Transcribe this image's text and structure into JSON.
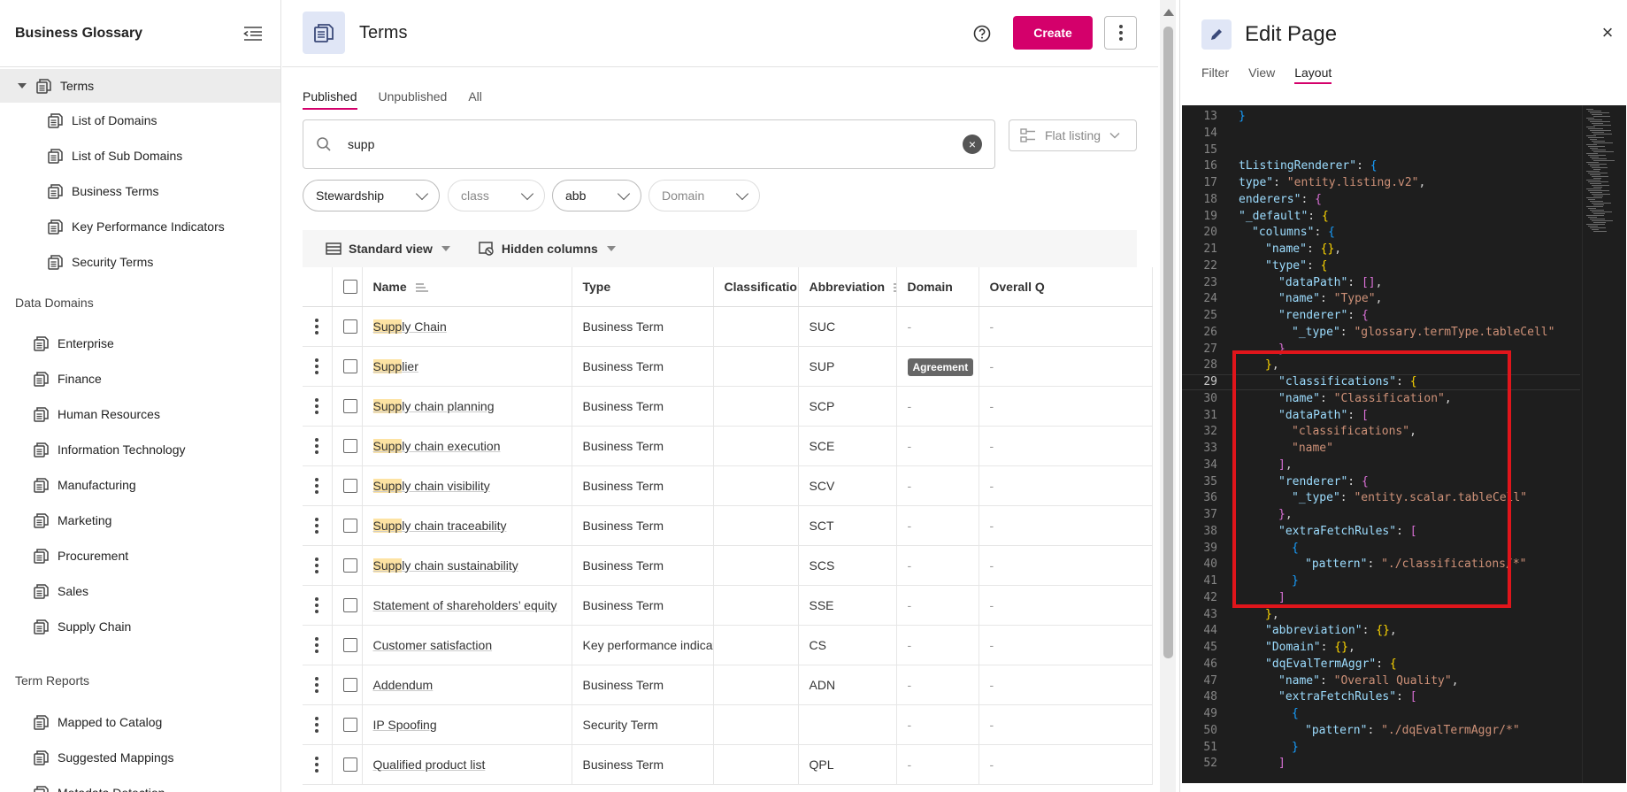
{
  "sidebar": {
    "title": "Business Glossary",
    "items": [
      {
        "label": "Terms",
        "level": 0,
        "active": true
      },
      {
        "label": "List of Domains",
        "level": 1
      },
      {
        "label": "List of Sub Domains",
        "level": 1
      },
      {
        "label": "Business Terms",
        "level": 1
      },
      {
        "label": "Key Performance Indicators",
        "level": 1
      },
      {
        "label": "Security Terms",
        "level": 1
      }
    ],
    "data_domains_header": "Data Domains",
    "data_domains": [
      "Enterprise",
      "Finance",
      "Human Resources",
      "Information Technology",
      "Manufacturing",
      "Marketing",
      "Procurement",
      "Sales",
      "Supply Chain"
    ],
    "term_reports_header": "Term Reports",
    "term_reports": [
      "Mapped to Catalog",
      "Suggested Mappings",
      "Metadata Detection"
    ]
  },
  "header": {
    "title": "Terms",
    "create_label": "Create"
  },
  "tabs": [
    "Published",
    "Unpublished",
    "All"
  ],
  "search": {
    "value": "supp"
  },
  "listing_mode": "Flat listing",
  "filters": [
    {
      "label": "Stewardship",
      "muted": false
    },
    {
      "label": "class",
      "muted": true
    },
    {
      "label": "abb",
      "muted": false
    },
    {
      "label": "Domain",
      "muted": true
    }
  ],
  "view_bar": {
    "standard_view": "Standard view",
    "hidden_columns": "Hidden columns"
  },
  "table": {
    "columns": [
      "Name",
      "Type",
      "Classification",
      "Abbreviation",
      "Domain",
      "Overall Q"
    ],
    "rows": [
      {
        "highlight": "Supp",
        "rest": "ly Chain",
        "type": "Business Term",
        "classification": "",
        "abbreviation": "SUC",
        "domain": "-",
        "quality": "-"
      },
      {
        "highlight": "Supp",
        "rest": "lier",
        "type": "Business Term",
        "classification": "",
        "abbreviation": "SUP",
        "domain": "Agreement",
        "quality": "-"
      },
      {
        "highlight": "Supp",
        "rest": "ly chain planning",
        "type": "Business Term",
        "classification": "",
        "abbreviation": "SCP",
        "domain": "-",
        "quality": "-"
      },
      {
        "highlight": "Supp",
        "rest": "ly chain execution",
        "type": "Business Term",
        "classification": "",
        "abbreviation": "SCE",
        "domain": "-",
        "quality": "-"
      },
      {
        "highlight": "Supp",
        "rest": "ly chain visibility",
        "type": "Business Term",
        "classification": "",
        "abbreviation": "SCV",
        "domain": "-",
        "quality": "-"
      },
      {
        "highlight": "Supp",
        "rest": "ly chain traceability",
        "type": "Business Term",
        "classification": "",
        "abbreviation": "SCT",
        "domain": "-",
        "quality": "-"
      },
      {
        "highlight": "Supp",
        "rest": "ly chain sustainability",
        "type": "Business Term",
        "classification": "",
        "abbreviation": "SCS",
        "domain": "-",
        "quality": "-"
      },
      {
        "highlight": "",
        "rest": "Statement of shareholders’ equity",
        "type": "Business Term",
        "classification": "",
        "abbreviation": "SSE",
        "domain": "-",
        "quality": "-"
      },
      {
        "highlight": "",
        "rest": "Customer satisfaction",
        "type": "Key performance indicator",
        "classification": "",
        "abbreviation": "CS",
        "domain": "-",
        "quality": "-"
      },
      {
        "highlight": "",
        "rest": "Addendum",
        "type": "Business Term",
        "classification": "",
        "abbreviation": "ADN",
        "domain": "-",
        "quality": "-"
      },
      {
        "highlight": "",
        "rest": "IP Spoofing",
        "type": "Security Term",
        "classification": "",
        "abbreviation": "",
        "domain": "-",
        "quality": "-"
      },
      {
        "highlight": "",
        "rest": "Qualified product list",
        "type": "Business Term",
        "classification": "",
        "abbreviation": "QPL",
        "domain": "-",
        "quality": "-"
      }
    ]
  },
  "panel": {
    "title": "Edit Page",
    "tabs": [
      "Filter",
      "View",
      "Layout"
    ],
    "active_tab": "Layout",
    "current_line": 29,
    "code_lines": [
      {
        "n": 13,
        "indent": 0,
        "t": [
          [
            "p3",
            "}"
          ]
        ]
      },
      {
        "n": 14,
        "indent": 0,
        "t": []
      },
      {
        "n": 15,
        "indent": 0,
        "t": []
      },
      {
        "n": 16,
        "indent": 0,
        "t": [
          [
            "k",
            "tListingRenderer\""
          ],
          [
            "d",
            ": "
          ],
          [
            "p3",
            "{"
          ]
        ]
      },
      {
        "n": 17,
        "indent": 0,
        "t": [
          [
            "k",
            "type\""
          ],
          [
            "d",
            ": "
          ],
          [
            "s",
            "\"entity.listing.v2\""
          ],
          [
            "d",
            ","
          ]
        ]
      },
      {
        "n": 18,
        "indent": 0,
        "t": [
          [
            "k",
            "enderers\""
          ],
          [
            "d",
            ": "
          ],
          [
            "p2",
            "{"
          ]
        ]
      },
      {
        "n": 19,
        "indent": 0,
        "t": [
          [
            "k",
            "\"_default\""
          ],
          [
            "d",
            ": "
          ],
          [
            "p1",
            "{"
          ]
        ]
      },
      {
        "n": 20,
        "indent": 1,
        "t": [
          [
            "k",
            "\"columns\""
          ],
          [
            "d",
            ": "
          ],
          [
            "p3",
            "{"
          ]
        ]
      },
      {
        "n": 21,
        "indent": 2,
        "t": [
          [
            "k",
            "\"name\""
          ],
          [
            "d",
            ": "
          ],
          [
            "p1",
            "{}"
          ],
          [
            "d",
            ","
          ]
        ]
      },
      {
        "n": 22,
        "indent": 2,
        "t": [
          [
            "k",
            "\"type\""
          ],
          [
            "d",
            ": "
          ],
          [
            "p1",
            "{"
          ]
        ]
      },
      {
        "n": 23,
        "indent": 3,
        "t": [
          [
            "k",
            "\"dataPath\""
          ],
          [
            "d",
            ": "
          ],
          [
            "p2",
            "[]"
          ],
          [
            "d",
            ","
          ]
        ]
      },
      {
        "n": 24,
        "indent": 3,
        "t": [
          [
            "k",
            "\"name\""
          ],
          [
            "d",
            ": "
          ],
          [
            "s",
            "\"Type\""
          ],
          [
            "d",
            ","
          ]
        ]
      },
      {
        "n": 25,
        "indent": 3,
        "t": [
          [
            "k",
            "\"renderer\""
          ],
          [
            "d",
            ": "
          ],
          [
            "p2",
            "{"
          ]
        ]
      },
      {
        "n": 26,
        "indent": 4,
        "t": [
          [
            "k",
            "\"_type\""
          ],
          [
            "d",
            ": "
          ],
          [
            "s",
            "\"glossary.termType.tableCell\""
          ]
        ]
      },
      {
        "n": 27,
        "indent": 3,
        "t": [
          [
            "p2",
            "}"
          ]
        ]
      },
      {
        "n": 28,
        "indent": 2,
        "t": [
          [
            "p1",
            "}"
          ],
          [
            "d",
            ","
          ]
        ]
      },
      {
        "n": 29,
        "indent": 3,
        "t": [
          [
            "k",
            "\"classifications\""
          ],
          [
            "d",
            ": "
          ],
          [
            "p1",
            "{"
          ]
        ]
      },
      {
        "n": 30,
        "indent": 3,
        "t": [
          [
            "k",
            "\"name\""
          ],
          [
            "d",
            ": "
          ],
          [
            "s",
            "\"Classification\""
          ],
          [
            "d",
            ","
          ]
        ]
      },
      {
        "n": 31,
        "indent": 3,
        "t": [
          [
            "k",
            "\"dataPath\""
          ],
          [
            "d",
            ": "
          ],
          [
            "p2",
            "["
          ]
        ]
      },
      {
        "n": 32,
        "indent": 4,
        "t": [
          [
            "s",
            "\"classifications\""
          ],
          [
            "d",
            ","
          ]
        ]
      },
      {
        "n": 33,
        "indent": 4,
        "t": [
          [
            "s",
            "\"name\""
          ]
        ]
      },
      {
        "n": 34,
        "indent": 3,
        "t": [
          [
            "p2",
            "]"
          ],
          [
            "d",
            ","
          ]
        ]
      },
      {
        "n": 35,
        "indent": 3,
        "t": [
          [
            "k",
            "\"renderer\""
          ],
          [
            "d",
            ": "
          ],
          [
            "p2",
            "{"
          ]
        ]
      },
      {
        "n": 36,
        "indent": 4,
        "t": [
          [
            "k",
            "\"_type\""
          ],
          [
            "d",
            ": "
          ],
          [
            "s",
            "\"entity.scalar.tableCell\""
          ]
        ]
      },
      {
        "n": 37,
        "indent": 3,
        "t": [
          [
            "p2",
            "}"
          ],
          [
            "d",
            ","
          ]
        ]
      },
      {
        "n": 38,
        "indent": 3,
        "t": [
          [
            "k",
            "\"extraFetchRules\""
          ],
          [
            "d",
            ": "
          ],
          [
            "p2",
            "["
          ]
        ]
      },
      {
        "n": 39,
        "indent": 4,
        "t": [
          [
            "p3",
            "{"
          ]
        ]
      },
      {
        "n": 40,
        "indent": 5,
        "t": [
          [
            "k",
            "\"pattern\""
          ],
          [
            "d",
            ": "
          ],
          [
            "s",
            "\"./classifications/*\""
          ]
        ]
      },
      {
        "n": 41,
        "indent": 4,
        "t": [
          [
            "p3",
            "}"
          ]
        ]
      },
      {
        "n": 42,
        "indent": 3,
        "t": [
          [
            "p2",
            "]"
          ]
        ]
      },
      {
        "n": 43,
        "indent": 2,
        "t": [
          [
            "p1",
            "}"
          ],
          [
            "d",
            ","
          ]
        ]
      },
      {
        "n": 44,
        "indent": 2,
        "t": [
          [
            "k",
            "\"abbreviation\""
          ],
          [
            "d",
            ": "
          ],
          [
            "p1",
            "{}"
          ],
          [
            "d",
            ","
          ]
        ]
      },
      {
        "n": 45,
        "indent": 2,
        "t": [
          [
            "k",
            "\"Domain\""
          ],
          [
            "d",
            ": "
          ],
          [
            "p1",
            "{}"
          ],
          [
            "d",
            ","
          ]
        ]
      },
      {
        "n": 46,
        "indent": 2,
        "t": [
          [
            "k",
            "\"dqEvalTermAggr\""
          ],
          [
            "d",
            ": "
          ],
          [
            "p1",
            "{"
          ]
        ]
      },
      {
        "n": 47,
        "indent": 3,
        "t": [
          [
            "k",
            "\"name\""
          ],
          [
            "d",
            ": "
          ],
          [
            "s",
            "\"Overall Quality\""
          ],
          [
            "d",
            ","
          ]
        ]
      },
      {
        "n": 48,
        "indent": 3,
        "t": [
          [
            "k",
            "\"extraFetchRules\""
          ],
          [
            "d",
            ": "
          ],
          [
            "p2",
            "["
          ]
        ]
      },
      {
        "n": 49,
        "indent": 4,
        "t": [
          [
            "p3",
            "{"
          ]
        ]
      },
      {
        "n": 50,
        "indent": 5,
        "t": [
          [
            "k",
            "\"pattern\""
          ],
          [
            "d",
            ": "
          ],
          [
            "s",
            "\"./dqEvalTermAggr/*\""
          ]
        ]
      },
      {
        "n": 51,
        "indent": 4,
        "t": [
          [
            "p3",
            "}"
          ]
        ]
      },
      {
        "n": 52,
        "indent": 3,
        "t": [
          [
            "p2",
            "]"
          ]
        ]
      }
    ]
  },
  "colors": {
    "accent": "#d4006b",
    "icon_bg": "#e0e6f6",
    "highlight": "#fde3a3",
    "editor_bg": "#1e1e1e",
    "annotation": "#e0151b"
  },
  "icons": {
    "nav_item": "stacked-documents-icon",
    "collapse": "collapse-menu-icon",
    "help": "help-circle-icon",
    "more": "kebab-icon",
    "search": "search-icon",
    "clear": "clear-icon",
    "listing": "flat-listing-icon",
    "view": "table-view-icon",
    "columns": "hidden-columns-icon",
    "edit": "pencil-icon",
    "close": "close-icon"
  }
}
